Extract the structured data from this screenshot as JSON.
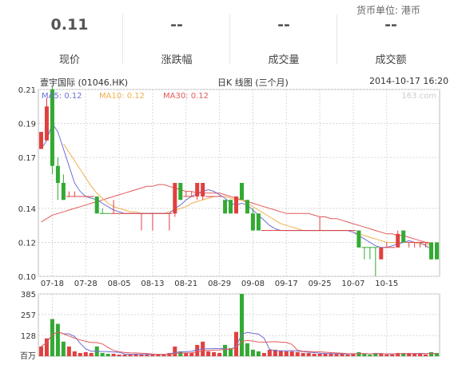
{
  "currency_label": "货币单位: 港币",
  "stats": [
    {
      "value": "0.11",
      "label": "现价"
    },
    {
      "value": "--",
      "label": "涨跌幅"
    },
    {
      "value": "--",
      "label": "成交量"
    },
    {
      "value": "--",
      "label": "成交额"
    }
  ],
  "chart_header": {
    "name": "壹宇国际 (01046.HK)",
    "period": "日K 线图 (三个月)",
    "datetime": "2014-10-17 16:20"
  },
  "legend": [
    {
      "name": "MA5: 0.12",
      "color": "#6f6fd6"
    },
    {
      "name": "MA10: 0.12",
      "color": "#f0b050"
    },
    {
      "name": "MA30: 0.12",
      "color": "#e35a5a"
    }
  ],
  "watermark": "163.com",
  "volume_unit": "百万",
  "colors": {
    "up": "#e04040",
    "down": "#33aa33",
    "grid": "#d8d8d8"
  },
  "chart_data": {
    "type": "candlestick",
    "price_ylim": [
      0.1,
      0.21
    ],
    "price_yticks": [
      "0.21",
      "0.19",
      "0.17",
      "0.14",
      "0.12",
      "0.10"
    ],
    "price_ytick_values": [
      0.21,
      0.19,
      0.17,
      0.14,
      0.12,
      0.1
    ],
    "volume_ylim": [
      0,
      385
    ],
    "volume_yticks": [
      "385",
      "257",
      "128"
    ],
    "volume_ytick_values": [
      385,
      257,
      128
    ],
    "date_labels": [
      "07-18",
      "07-28",
      "08-05",
      "08-13",
      "08-21",
      "08-29",
      "09-08",
      "09-17",
      "09-25",
      "10-07",
      "10-15"
    ],
    "date_label_index": [
      2,
      8,
      14,
      20,
      26,
      32,
      38,
      44,
      50,
      56,
      62
    ],
    "candles": [
      [
        0.175,
        0.185,
        0.185,
        0.175,
        60,
        "up"
      ],
      [
        0.18,
        0.2,
        0.205,
        0.18,
        110,
        "up"
      ],
      [
        0.21,
        0.165,
        0.212,
        0.16,
        230,
        "down"
      ],
      [
        0.165,
        0.155,
        0.17,
        0.145,
        200,
        "down"
      ],
      [
        0.155,
        0.145,
        0.16,
        0.145,
        90,
        "down"
      ],
      [
        0.147,
        0.147,
        0.15,
        0.147,
        60,
        "up"
      ],
      [
        0.147,
        0.147,
        0.15,
        0.147,
        30,
        "up"
      ],
      [
        0.147,
        0.147,
        0.147,
        0.147,
        20,
        "up"
      ],
      [
        0.147,
        0.147,
        0.147,
        0.147,
        25,
        "up"
      ],
      [
        0.147,
        0.147,
        0.147,
        0.147,
        20,
        "up"
      ],
      [
        0.147,
        0.137,
        0.147,
        0.137,
        60,
        "down"
      ],
      [
        0.137,
        0.137,
        0.14,
        0.137,
        20,
        "down"
      ],
      [
        0.137,
        0.137,
        0.137,
        0.137,
        15,
        "down"
      ],
      [
        0.137,
        0.137,
        0.145,
        0.137,
        15,
        "up"
      ],
      [
        0.137,
        0.137,
        0.137,
        0.137,
        10,
        "up"
      ],
      [
        0.137,
        0.137,
        0.137,
        0.137,
        10,
        "up"
      ],
      [
        0.137,
        0.137,
        0.137,
        0.137,
        10,
        "up"
      ],
      [
        0.137,
        0.137,
        0.137,
        0.137,
        15,
        "up"
      ],
      [
        0.137,
        0.137,
        0.137,
        0.127,
        10,
        "up"
      ],
      [
        0.137,
        0.137,
        0.137,
        0.137,
        10,
        "up"
      ],
      [
        0.137,
        0.137,
        0.137,
        0.127,
        15,
        "up"
      ],
      [
        0.137,
        0.137,
        0.137,
        0.137,
        10,
        "up"
      ],
      [
        0.137,
        0.137,
        0.137,
        0.137,
        10,
        "up"
      ],
      [
        0.137,
        0.137,
        0.137,
        0.127,
        20,
        "up"
      ],
      [
        0.137,
        0.155,
        0.155,
        0.135,
        60,
        "up"
      ],
      [
        0.155,
        0.145,
        0.155,
        0.145,
        30,
        "down"
      ],
      [
        0.147,
        0.147,
        0.15,
        0.147,
        20,
        "up"
      ],
      [
        0.147,
        0.147,
        0.15,
        0.147,
        20,
        "up"
      ],
      [
        0.147,
        0.155,
        0.155,
        0.145,
        70,
        "up"
      ],
      [
        0.147,
        0.155,
        0.155,
        0.145,
        90,
        "up"
      ],
      [
        0.147,
        0.147,
        0.147,
        0.147,
        30,
        "up"
      ],
      [
        0.147,
        0.147,
        0.147,
        0.147,
        25,
        "up"
      ],
      [
        0.147,
        0.147,
        0.147,
        0.147,
        20,
        "up"
      ],
      [
        0.145,
        0.137,
        0.145,
        0.137,
        70,
        "down"
      ],
      [
        0.145,
        0.137,
        0.145,
        0.137,
        50,
        "down"
      ],
      [
        0.137,
        0.147,
        0.147,
        0.137,
        150,
        "up"
      ],
      [
        0.155,
        0.145,
        0.155,
        0.145,
        385,
        "down"
      ],
      [
        0.145,
        0.137,
        0.145,
        0.137,
        80,
        "down"
      ],
      [
        0.137,
        0.127,
        0.14,
        0.127,
        40,
        "down"
      ],
      [
        0.137,
        0.127,
        0.137,
        0.127,
        30,
        "down"
      ],
      [
        0.127,
        0.127,
        0.127,
        0.127,
        20,
        "up"
      ],
      [
        0.127,
        0.127,
        0.127,
        0.127,
        40,
        "up"
      ],
      [
        0.127,
        0.127,
        0.127,
        0.127,
        40,
        "up"
      ],
      [
        0.127,
        0.127,
        0.127,
        0.127,
        35,
        "up"
      ],
      [
        0.127,
        0.127,
        0.127,
        0.127,
        30,
        "up"
      ],
      [
        0.127,
        0.127,
        0.127,
        0.127,
        30,
        "up"
      ],
      [
        0.127,
        0.127,
        0.127,
        0.127,
        25,
        "up"
      ],
      [
        0.127,
        0.127,
        0.127,
        0.127,
        20,
        "up"
      ],
      [
        0.127,
        0.127,
        0.127,
        0.127,
        20,
        "up"
      ],
      [
        0.127,
        0.127,
        0.127,
        0.127,
        15,
        "up"
      ],
      [
        0.127,
        0.127,
        0.135,
        0.127,
        15,
        "up"
      ],
      [
        0.127,
        0.127,
        0.127,
        0.127,
        15,
        "up"
      ],
      [
        0.127,
        0.127,
        0.127,
        0.127,
        15,
        "up"
      ],
      [
        0.127,
        0.127,
        0.127,
        0.127,
        15,
        "up"
      ],
      [
        0.127,
        0.127,
        0.127,
        0.127,
        15,
        "up"
      ],
      [
        0.127,
        0.127,
        0.127,
        0.127,
        10,
        "up"
      ],
      [
        0.127,
        0.127,
        0.127,
        0.127,
        15,
        "up"
      ],
      [
        0.127,
        0.117,
        0.127,
        0.117,
        25,
        "down"
      ],
      [
        0.117,
        0.117,
        0.117,
        0.11,
        15,
        "down"
      ],
      [
        0.117,
        0.117,
        0.117,
        0.11,
        10,
        "down"
      ],
      [
        0.117,
        0.117,
        0.117,
        0.1,
        20,
        "down"
      ],
      [
        0.11,
        0.117,
        0.117,
        0.11,
        15,
        "up"
      ],
      [
        0.117,
        0.117,
        0.12,
        0.117,
        10,
        "up"
      ],
      [
        0.117,
        0.117,
        0.117,
        0.117,
        10,
        "up"
      ],
      [
        0.117,
        0.125,
        0.127,
        0.117,
        20,
        "up"
      ],
      [
        0.127,
        0.12,
        0.127,
        0.12,
        20,
        "down"
      ],
      [
        0.12,
        0.12,
        0.12,
        0.117,
        20,
        "up"
      ],
      [
        0.12,
        0.12,
        0.12,
        0.117,
        15,
        "up"
      ],
      [
        0.12,
        0.12,
        0.12,
        0.117,
        15,
        "up"
      ],
      [
        0.12,
        0.12,
        0.12,
        0.117,
        10,
        "up"
      ],
      [
        0.12,
        0.11,
        0.12,
        0.11,
        25,
        "down"
      ],
      [
        0.12,
        0.11,
        0.12,
        0.11,
        20,
        "down"
      ]
    ],
    "ma5": [
      0.175,
      0.18,
      0.19,
      0.185,
      0.175,
      0.165,
      0.155,
      0.15,
      0.147,
      0.146,
      0.145,
      0.143,
      0.141,
      0.139,
      0.138,
      0.137,
      0.137,
      0.137,
      0.137,
      0.137,
      0.137,
      0.137,
      0.137,
      0.137,
      0.14,
      0.142,
      0.145,
      0.147,
      0.149,
      0.15,
      0.151,
      0.15,
      0.148,
      0.146,
      0.143,
      0.142,
      0.143,
      0.142,
      0.139,
      0.136,
      0.133,
      0.13,
      0.128,
      0.127,
      0.127,
      0.127,
      0.127,
      0.127,
      0.127,
      0.127,
      0.127,
      0.127,
      0.127,
      0.127,
      0.127,
      0.127,
      0.126,
      0.124,
      0.122,
      0.12,
      0.118,
      0.117,
      0.117,
      0.118,
      0.119,
      0.12,
      0.121,
      0.12,
      0.12,
      0.118,
      0.116
    ],
    "ma10": [
      null,
      null,
      null,
      null,
      0.178,
      0.173,
      0.168,
      0.163,
      0.158,
      0.153,
      0.149,
      0.146,
      0.143,
      0.141,
      0.14,
      0.139,
      0.138,
      0.138,
      0.137,
      0.137,
      0.137,
      0.137,
      0.137,
      0.138,
      0.139,
      0.14,
      0.141,
      0.143,
      0.144,
      0.145,
      0.146,
      0.147,
      0.147,
      0.147,
      0.146,
      0.145,
      0.145,
      0.143,
      0.141,
      0.139,
      0.137,
      0.135,
      0.133,
      0.131,
      0.13,
      0.129,
      0.128,
      0.127,
      0.127,
      0.127,
      0.127,
      0.127,
      0.127,
      0.127,
      0.127,
      0.127,
      0.126,
      0.125,
      0.124,
      0.123,
      0.122,
      0.121,
      0.12,
      0.12,
      0.12,
      0.12,
      0.12,
      0.12,
      0.119,
      0.119,
      0.118
    ],
    "ma30": [
      0.132,
      0.134,
      0.136,
      0.137,
      0.138,
      0.139,
      0.14,
      0.141,
      0.142,
      0.143,
      0.144,
      0.145,
      0.146,
      0.147,
      0.148,
      0.149,
      0.15,
      0.151,
      0.152,
      0.153,
      0.153,
      0.154,
      0.154,
      0.153,
      0.152,
      0.151,
      0.15,
      0.15,
      0.149,
      0.149,
      0.149,
      0.149,
      0.149,
      0.148,
      0.147,
      0.146,
      0.145,
      0.144,
      0.143,
      0.142,
      0.141,
      0.14,
      0.139,
      0.138,
      0.137,
      0.137,
      0.137,
      0.137,
      0.137,
      0.136,
      0.135,
      0.135,
      0.134,
      0.134,
      0.133,
      0.132,
      0.131,
      0.13,
      0.129,
      0.128,
      0.127,
      0.126,
      0.125,
      0.125,
      0.124,
      0.124,
      0.123,
      0.122,
      0.121,
      0.12,
      0.119
    ]
  }
}
